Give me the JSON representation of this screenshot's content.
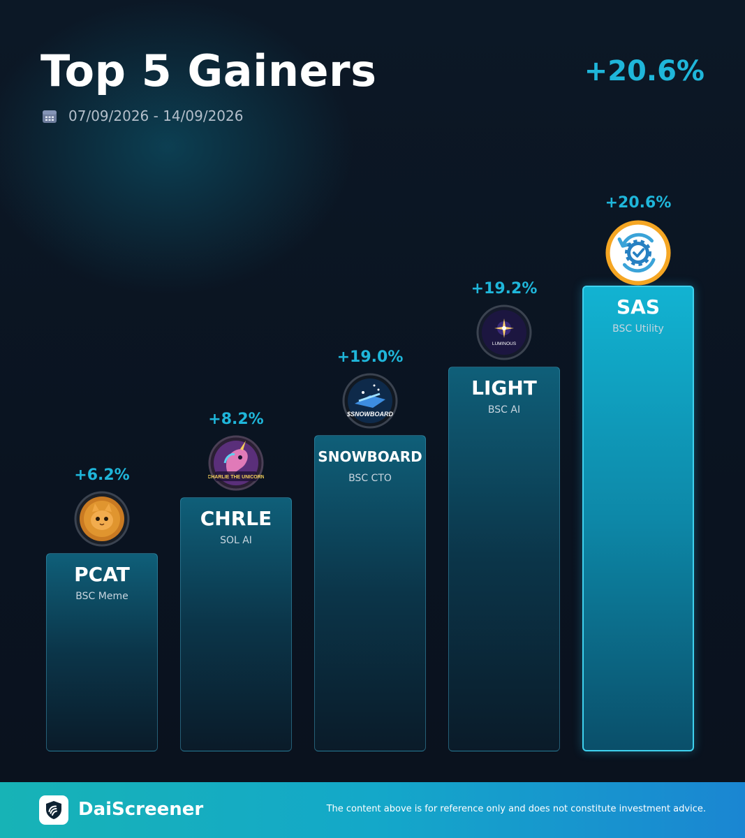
{
  "header": {
    "title": "Top 5 Gainers",
    "headline_change": "+20.6%",
    "date_range": "07/09/2026 - 14/09/2026",
    "icon": "calendar-icon"
  },
  "colors": {
    "accent": "#1fb6da",
    "background": "#0b1422",
    "bar_fill": "#0b3549",
    "bar_highlight": "#12b3d2",
    "top_logo_ring": "#f5a623"
  },
  "chart_data": {
    "type": "bar",
    "categories": [
      "PCAT",
      "CHRLE",
      "SNOWBOARD",
      "LIGHT",
      "SAS"
    ],
    "values": [
      6.2,
      8.2,
      19.0,
      19.2,
      20.6
    ],
    "value_labels": [
      "+6.2%",
      "+8.2%",
      "+19.0%",
      "+19.2%",
      "+20.6%"
    ],
    "subtitles": [
      "BSC Meme",
      "SOL AI",
      "BSC CTO",
      "BSC AI",
      "BSC Utility"
    ],
    "logos": [
      "pcat-logo-icon",
      "chrle-logo-icon",
      "snowboard-logo-icon",
      "light-logo-icon",
      "sas-logo-icon"
    ],
    "logo_texts": [
      "",
      "CHARLIE THE UNICORN",
      "$SNOWBOARD",
      "LUMINOUS",
      ""
    ],
    "highlight_index": 4,
    "grid": false,
    "legend": "none"
  },
  "footer": {
    "brand": "DaiScreener",
    "brand_icon": "daiscreener-shield-icon",
    "disclaimer": "The content above is for reference only and does not constitute investment advice."
  }
}
